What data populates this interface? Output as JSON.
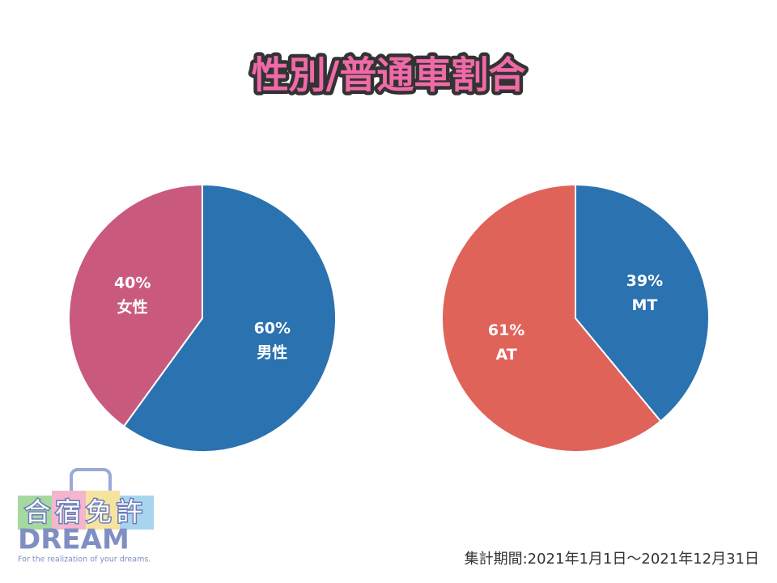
{
  "title": "性別/普通車割合",
  "chart_data": [
    {
      "type": "pie",
      "categories": [
        "男性",
        "女性"
      ],
      "values": [
        60,
        40
      ],
      "value_labels": [
        "60%",
        "40%"
      ],
      "colors": [
        "#2a72b0",
        "#c95a7e"
      ]
    },
    {
      "type": "pie",
      "categories": [
        "MT",
        "AT"
      ],
      "values": [
        39,
        61
      ],
      "value_labels": [
        "39%",
        "61%"
      ],
      "colors": [
        "#2a72b0",
        "#e0635a"
      ]
    }
  ],
  "footnote": "集計期間:2021年1月1日〜2021年12月31日",
  "logo": {
    "name": "合宿免許",
    "brand": "DREAM",
    "tagline": "For the realization of your dreams."
  }
}
